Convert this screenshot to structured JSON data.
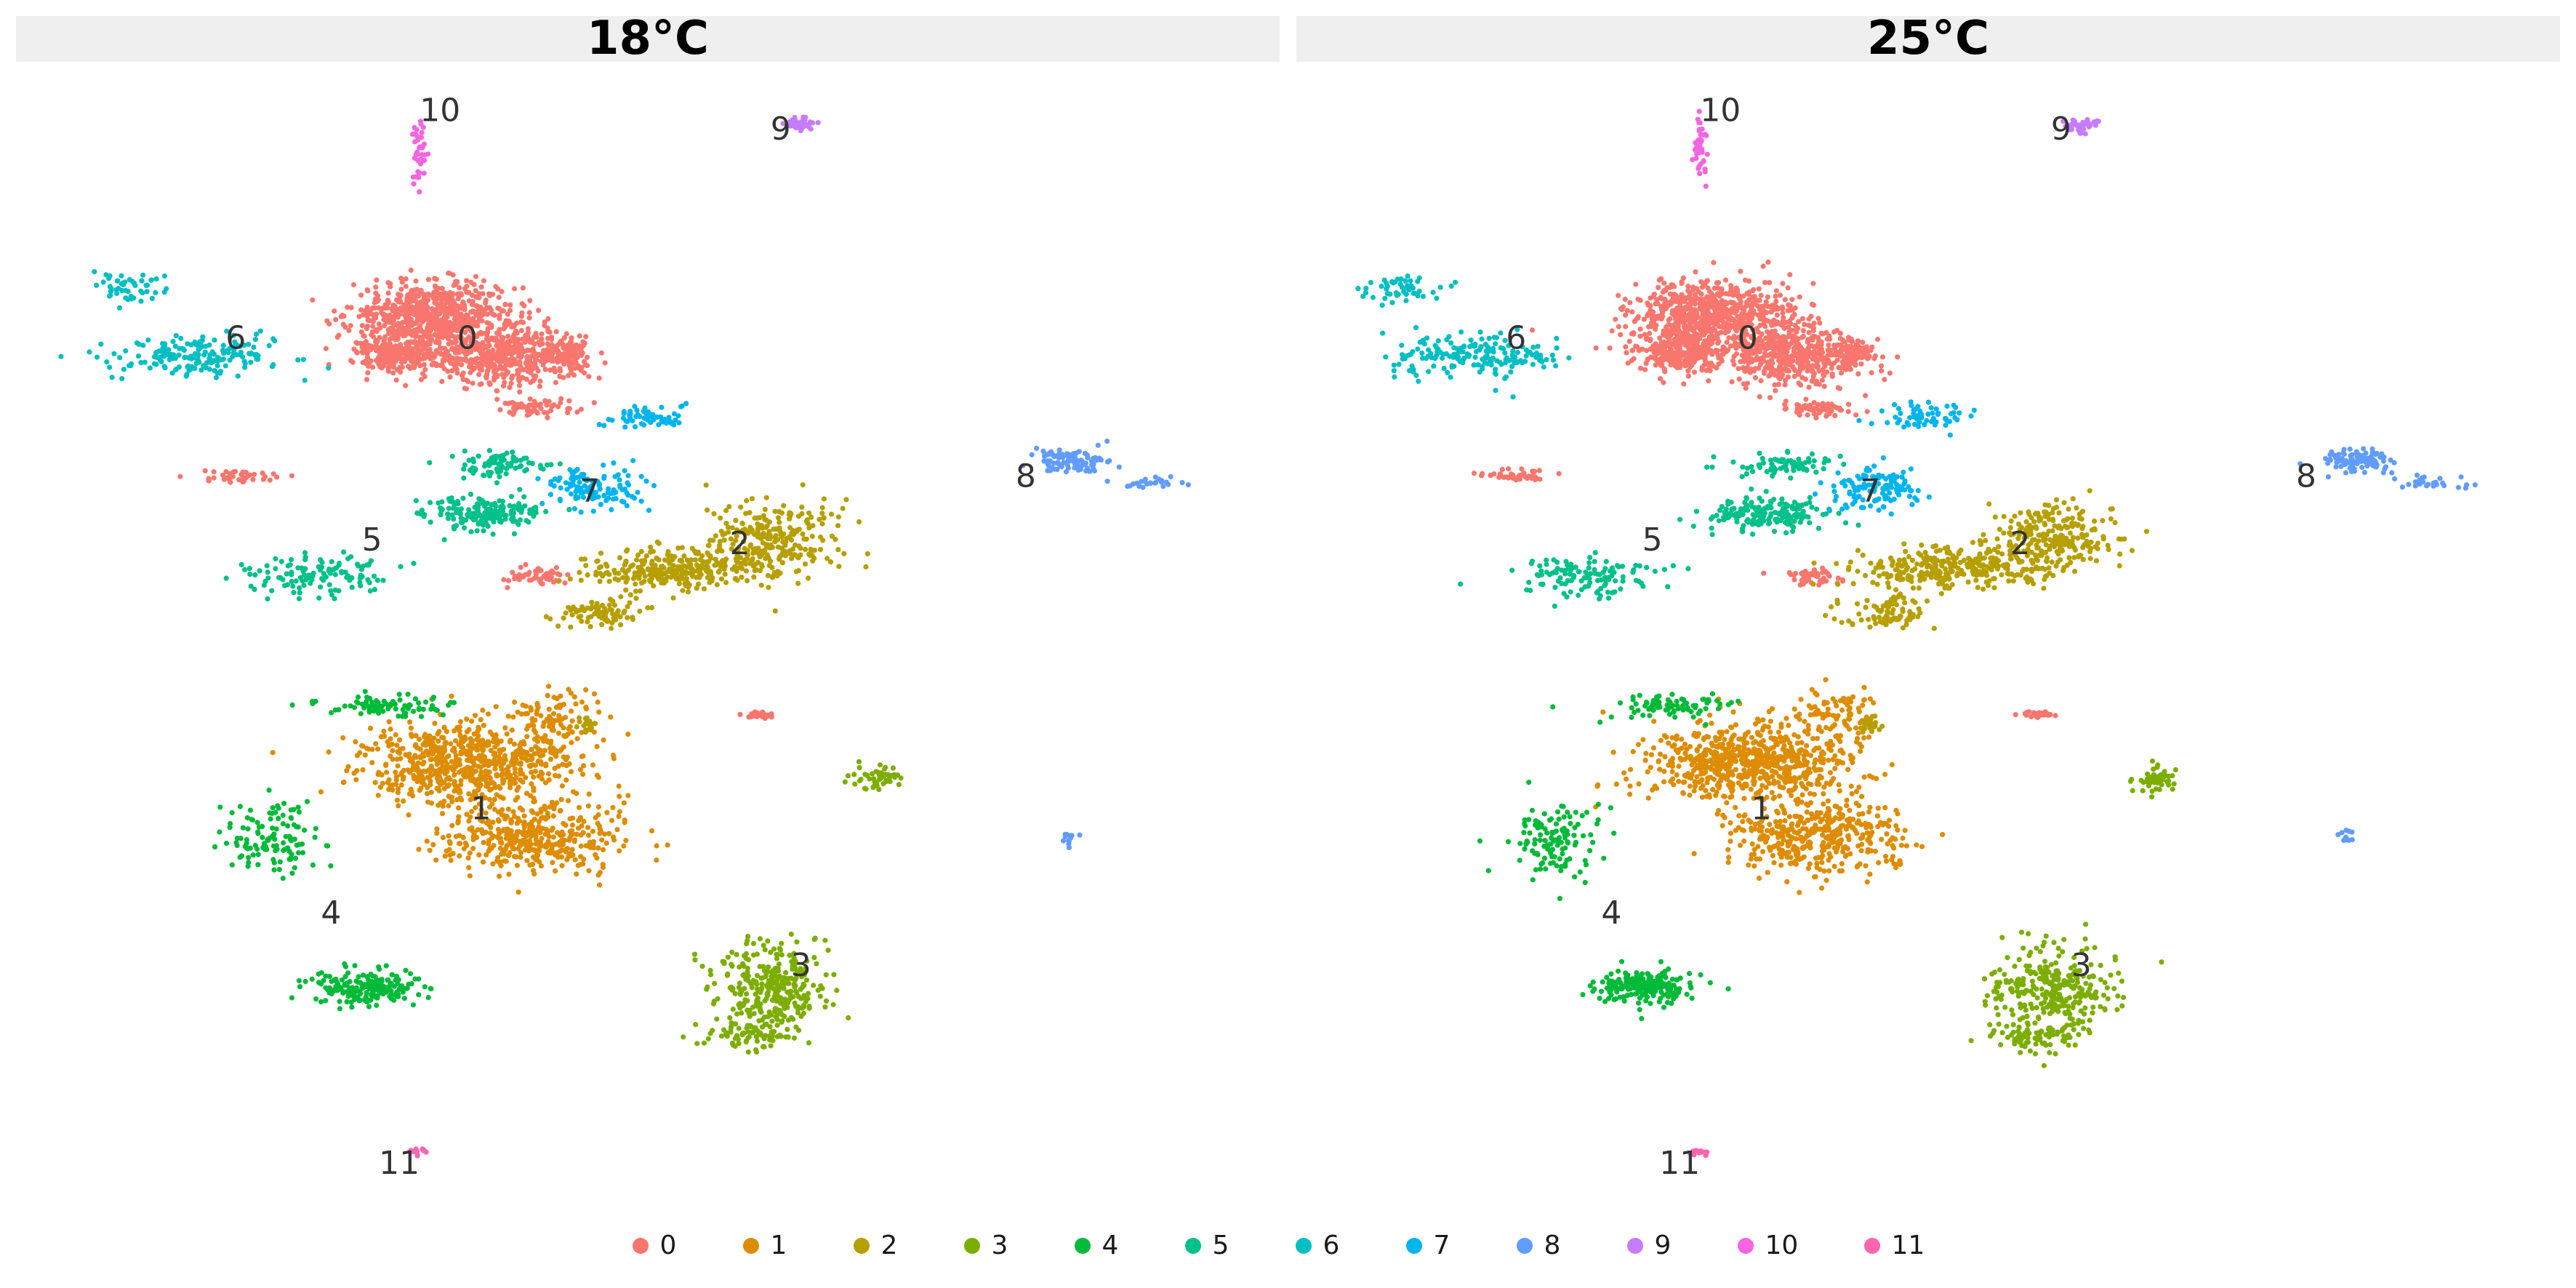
{
  "panels": [
    {
      "title": "18°C"
    },
    {
      "title": "25°C"
    }
  ],
  "legend": {
    "items": [
      {
        "label": "0",
        "color": "#F8766D"
      },
      {
        "label": "1",
        "color": "#DE8C00"
      },
      {
        "label": "2",
        "color": "#B79F00"
      },
      {
        "label": "3",
        "color": "#7CAE00"
      },
      {
        "label": "4",
        "color": "#00BA38"
      },
      {
        "label": "5",
        "color": "#00C08B"
      },
      {
        "label": "6",
        "color": "#00BFC4"
      },
      {
        "label": "7",
        "color": "#00B4F0"
      },
      {
        "label": "8",
        "color": "#619CFF"
      },
      {
        "label": "9",
        "color": "#C77CFF"
      },
      {
        "label": "10",
        "color": "#F564E3"
      },
      {
        "label": "11",
        "color": "#FF64B0"
      }
    ]
  },
  "chart_data": [
    {
      "type": "scatter",
      "title": "18°C",
      "xlabel": "",
      "ylabel": "",
      "grid": false,
      "legend_position": "bottom",
      "cluster_labels": [
        "0",
        "1",
        "2",
        "3",
        "4",
        "5",
        "6",
        "7",
        "8",
        "9",
        "10",
        "11"
      ],
      "clusters": [
        {
          "id": "0",
          "label_pos": [
            2.0,
            2.6
          ],
          "blobs": [
            [
              1.5,
              3.5,
              1.1,
              0.8,
              700
            ],
            [
              2.6,
              2.4,
              1.0,
              0.7,
              500
            ],
            [
              1.0,
              2.5,
              0.6,
              0.5,
              250
            ],
            [
              3.5,
              2.5,
              0.3,
              0.4,
              80
            ],
            [
              3.0,
              1.0,
              0.5,
              0.2,
              60
            ],
            [
              -1.4,
              -0.8,
              0.6,
              0.15,
              40
            ],
            [
              3.0,
              -3.5,
              0.4,
              0.2,
              50
            ],
            [
              6.3,
              -7.2,
              0.3,
              0.1,
              25
            ]
          ]
        },
        {
          "id": "1",
          "label_pos": [
            2.2,
            -10.0
          ],
          "blobs": [
            [
              2.0,
              -8.5,
              1.4,
              1.0,
              700
            ],
            [
              3.0,
              -10.5,
              1.2,
              0.9,
              400
            ],
            [
              3.3,
              -7.2,
              0.5,
              0.6,
              80
            ]
          ]
        },
        {
          "id": "2",
          "label_pos": [
            6.0,
            -2.9
          ],
          "blobs": [
            [
              5.0,
              -3.3,
              1.2,
              0.5,
              300
            ],
            [
              6.5,
              -2.5,
              0.9,
              0.9,
              250
            ],
            [
              4.0,
              -4.5,
              0.6,
              0.4,
              80
            ],
            [
              3.8,
              -7.5,
              0.15,
              0.2,
              20
            ]
          ]
        },
        {
          "id": "3",
          "label_pos": [
            6.9,
            -14.2
          ],
          "blobs": [
            [
              6.5,
              -14.5,
              0.8,
              1.0,
              300
            ],
            [
              6.2,
              -15.8,
              0.7,
              0.4,
              80
            ],
            [
              8.0,
              -8.9,
              0.3,
              0.3,
              50
            ]
          ]
        },
        {
          "id": "4",
          "label_pos": [
            0.0,
            -12.8
          ],
          "blobs": [
            [
              0.5,
              -14.5,
              0.7,
              0.4,
              200
            ],
            [
              -0.8,
              -10.5,
              0.6,
              1.0,
              120
            ],
            [
              0.8,
              -7.0,
              0.8,
              0.3,
              80
            ]
          ]
        },
        {
          "id": "5",
          "label_pos": [
            0.6,
            -2.8
          ],
          "blobs": [
            [
              -0.3,
              -3.5,
              1.0,
              0.5,
              120
            ],
            [
              2.3,
              -1.8,
              0.8,
              0.4,
              180
            ],
            [
              2.5,
              -0.5,
              0.7,
              0.3,
              80
            ]
          ]
        },
        {
          "id": "6",
          "label_pos": [
            -1.4,
            2.6
          ],
          "blobs": [
            [
              -2.0,
              2.4,
              1.2,
              0.5,
              180
            ],
            [
              -3.0,
              4.2,
              0.6,
              0.4,
              50
            ]
          ]
        },
        {
          "id": "7",
          "label_pos": [
            3.8,
            -1.5
          ],
          "blobs": [
            [
              3.9,
              -1.1,
              0.6,
              0.5,
              120
            ],
            [
              4.6,
              0.8,
              0.6,
              0.3,
              60
            ]
          ]
        },
        {
          "id": "8",
          "label_pos": [
            10.2,
            -1.1
          ],
          "blobs": [
            [
              10.9,
              -0.4,
              0.5,
              0.3,
              100
            ],
            [
              12.0,
              -1.0,
              0.5,
              0.15,
              25
            ],
            [
              10.8,
              -10.5,
              0.1,
              0.2,
              12
            ]
          ]
        },
        {
          "id": "9",
          "label_pos": [
            6.6,
            8.2
          ],
          "blobs": [
            [
              6.9,
              8.6,
              0.2,
              0.15,
              45
            ]
          ]
        },
        {
          "id": "10",
          "label_pos": [
            1.6,
            8.7
          ],
          "blobs": [
            [
              1.3,
              7.9,
              0.1,
              0.9,
              40
            ]
          ]
        },
        {
          "id": "11",
          "label_pos": [
            1.0,
            -19.5
          ],
          "blobs": [
            [
              1.3,
              -18.9,
              0.15,
              0.1,
              12
            ]
          ]
        }
      ]
    },
    {
      "type": "scatter",
      "title": "25°C",
      "xlabel": "",
      "ylabel": "",
      "grid": false,
      "legend_position": "bottom",
      "cluster_labels": [
        "0",
        "1",
        "2",
        "3",
        "4",
        "5",
        "6",
        "7",
        "8",
        "9",
        "10",
        "11"
      ],
      "clusters": [
        {
          "id": "0",
          "label_pos": [
            2.0,
            2.6
          ],
          "blobs": [
            [
              1.5,
              3.5,
              1.1,
              0.8,
              700
            ],
            [
              2.6,
              2.4,
              1.0,
              0.7,
              500
            ],
            [
              1.0,
              2.5,
              0.6,
              0.5,
              250
            ],
            [
              3.5,
              2.5,
              0.3,
              0.4,
              80
            ],
            [
              3.0,
              1.0,
              0.5,
              0.2,
              60
            ],
            [
              -1.4,
              -0.8,
              0.6,
              0.15,
              40
            ],
            [
              3.0,
              -3.5,
              0.4,
              0.2,
              50
            ],
            [
              6.3,
              -7.2,
              0.3,
              0.1,
              25
            ]
          ]
        },
        {
          "id": "1",
          "label_pos": [
            2.2,
            -10.0
          ],
          "blobs": [
            [
              2.0,
              -8.5,
              1.4,
              1.0,
              700
            ],
            [
              3.0,
              -10.5,
              1.2,
              0.9,
              400
            ],
            [
              3.3,
              -7.2,
              0.5,
              0.6,
              80
            ]
          ]
        },
        {
          "id": "2",
          "label_pos": [
            6.0,
            -2.9
          ],
          "blobs": [
            [
              5.0,
              -3.3,
              1.2,
              0.5,
              300
            ],
            [
              6.5,
              -2.5,
              0.9,
              0.9,
              250
            ],
            [
              4.0,
              -4.5,
              0.6,
              0.4,
              80
            ],
            [
              3.8,
              -7.5,
              0.15,
              0.2,
              20
            ]
          ]
        },
        {
          "id": "3",
          "label_pos": [
            6.9,
            -14.2
          ],
          "blobs": [
            [
              6.5,
              -14.5,
              0.8,
              1.0,
              300
            ],
            [
              6.2,
              -15.8,
              0.7,
              0.4,
              80
            ],
            [
              8.0,
              -8.9,
              0.3,
              0.3,
              50
            ]
          ]
        },
        {
          "id": "4",
          "label_pos": [
            0.0,
            -12.8
          ],
          "blobs": [
            [
              0.5,
              -14.5,
              0.7,
              0.4,
              200
            ],
            [
              -0.8,
              -10.5,
              0.6,
              1.0,
              120
            ],
            [
              0.8,
              -7.0,
              0.8,
              0.3,
              80
            ]
          ]
        },
        {
          "id": "5",
          "label_pos": [
            0.6,
            -2.8
          ],
          "blobs": [
            [
              -0.3,
              -3.5,
              1.0,
              0.5,
              120
            ],
            [
              2.3,
              -1.8,
              0.8,
              0.4,
              180
            ],
            [
              2.5,
              -0.5,
              0.7,
              0.3,
              80
            ]
          ]
        },
        {
          "id": "6",
          "label_pos": [
            -1.4,
            2.6
          ],
          "blobs": [
            [
              -2.0,
              2.4,
              1.2,
              0.5,
              180
            ],
            [
              -3.0,
              4.2,
              0.6,
              0.4,
              50
            ]
          ]
        },
        {
          "id": "7",
          "label_pos": [
            3.8,
            -1.5
          ],
          "blobs": [
            [
              3.9,
              -1.1,
              0.6,
              0.5,
              120
            ],
            [
              4.6,
              0.8,
              0.6,
              0.3,
              60
            ]
          ]
        },
        {
          "id": "8",
          "label_pos": [
            10.2,
            -1.1
          ],
          "blobs": [
            [
              10.9,
              -0.4,
              0.5,
              0.3,
              100
            ],
            [
              12.0,
              -1.0,
              0.5,
              0.15,
              25
            ],
            [
              10.8,
              -10.5,
              0.1,
              0.2,
              12
            ]
          ]
        },
        {
          "id": "9",
          "label_pos": [
            6.6,
            8.2
          ],
          "blobs": [
            [
              6.9,
              8.6,
              0.2,
              0.15,
              45
            ]
          ]
        },
        {
          "id": "10",
          "label_pos": [
            1.6,
            8.7
          ],
          "blobs": [
            [
              1.3,
              7.9,
              0.1,
              0.9,
              40
            ]
          ]
        },
        {
          "id": "11",
          "label_pos": [
            1.0,
            -19.5
          ],
          "blobs": [
            [
              1.3,
              -18.9,
              0.15,
              0.1,
              12
            ]
          ]
        }
      ]
    }
  ]
}
